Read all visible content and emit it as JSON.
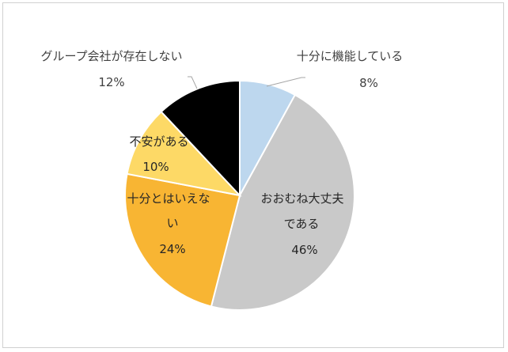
{
  "chart_data": {
    "type": "pie",
    "title": "",
    "start_angle_deg": 0,
    "direction": "clockwise",
    "slices": [
      {
        "name": "十分に機能している",
        "value": 8,
        "percent_label": "8%",
        "color": "#bdd7ee",
        "label_lines": [
          "十分に機能している"
        ]
      },
      {
        "name": "おおむね大丈夫である",
        "value": 46,
        "percent_label": "46%",
        "color": "#c9c9c9",
        "label_lines": [
          "おおむね大丈夫",
          "である"
        ]
      },
      {
        "name": "十分とはいえない",
        "value": 24,
        "percent_label": "24%",
        "color": "#f8b533",
        "label_lines": [
          "十分とはいえな",
          "い"
        ]
      },
      {
        "name": "不安がある",
        "value": 10,
        "percent_label": "10%",
        "color": "#fdd966",
        "label_lines": [
          "不安がある"
        ]
      },
      {
        "name": "グループ会社が存在しない",
        "value": 12,
        "percent_label": "12%",
        "color": "#000000",
        "label_lines": [
          "グループ会社が存在しない"
        ]
      }
    ],
    "legend": "none",
    "data_labels": "category name and percent"
  }
}
